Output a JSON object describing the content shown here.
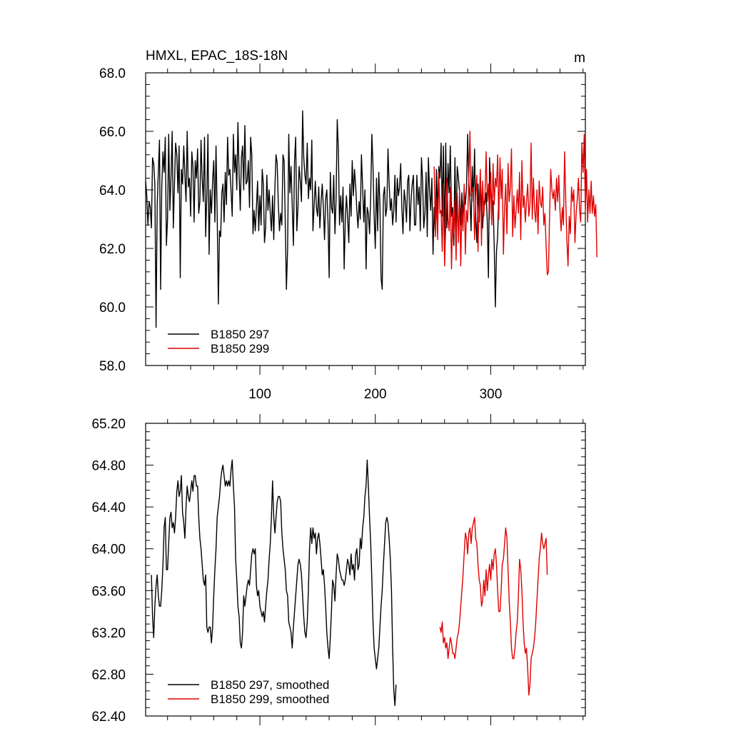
{
  "chart_data": [
    {
      "type": "line",
      "title": "HMXL, EPAC_18S-18N",
      "units": "m",
      "xlim": [
        1,
        382
      ],
      "ylim": [
        58.0,
        68.0
      ],
      "xticks": [
        100,
        200,
        300
      ],
      "xtick_labels": [
        "100",
        "200",
        "300"
      ],
      "yticks": [
        58.0,
        60.0,
        62.0,
        64.0,
        66.0,
        68.0
      ],
      "ytick_labels": [
        "58.0",
        "60.0",
        "62.0",
        "64.0",
        "66.0",
        "68.0"
      ],
      "legend_position": "bottom-left",
      "series": [
        {
          "name": "B1850 297",
          "color": "#000000",
          "x_start": 1,
          "values": [
            64.3,
            63.8,
            62.8,
            63.6,
            63.4,
            62.7,
            65.1,
            64.9,
            64.2,
            59.3,
            63.5,
            64.6,
            65.7,
            60.6,
            64.1,
            65.3,
            64.6,
            65.8,
            62.1,
            63.0,
            65.9,
            63.3,
            64.5,
            66.0,
            62.7,
            64.2,
            65.6,
            65.2,
            63.9,
            65.5,
            61.0,
            64.7,
            64.2,
            65.5,
            64.5,
            63.6,
            66.0,
            64.1,
            64.4,
            63.1,
            65.3,
            64.8,
            62.9,
            65.0,
            64.4,
            65.4,
            63.2,
            63.6,
            65.7,
            64.4,
            63.6,
            65.8,
            62.4,
            63.8,
            65.9,
            61.8,
            64.0,
            63.2,
            64.3,
            65.0,
            62.9,
            65.5,
            63.2,
            60.1,
            62.6,
            62.4,
            63.9,
            64.2,
            62.9,
            64.6,
            63.5,
            65.8,
            64.5,
            64.7,
            64.0,
            63.1,
            65.9,
            64.6,
            65.2,
            64.0,
            66.3,
            64.5,
            63.3,
            65.1,
            65.5,
            64.0,
            66.2,
            64.2,
            64.3,
            65.0,
            63.4,
            65.8,
            65.2,
            62.5,
            63.3,
            62.6,
            63.4,
            64.3,
            62.6,
            63.8,
            62.8,
            64.7,
            64.2,
            62.2,
            62.7,
            64.5,
            63.3,
            64.0,
            63.2,
            62.6,
            63.8,
            62.3,
            64.1,
            65.2,
            64.9,
            63.5,
            62.6,
            63.2,
            62.8,
            65.2,
            65.0,
            62.9,
            60.6,
            62.0,
            65.9,
            63.9,
            64.8,
            63.5,
            62.1,
            65.0,
            65.8,
            62.6,
            63.4,
            64.8,
            64.3,
            63.6,
            66.7,
            65.1,
            64.5,
            64.2,
            65.6,
            63.7,
            64.4,
            64.0,
            65.7,
            62.6,
            63.5,
            64.3,
            63.4,
            63.1,
            64.1,
            62.7,
            63.6,
            64.2,
            63.4,
            62.3,
            63.7,
            64.0,
            62.9,
            61.0,
            64.6,
            63.4,
            63.2,
            64.5,
            62.5,
            63.7,
            66.4,
            65.4,
            62.8,
            63.8,
            62.9,
            64.1,
            61.3,
            63.0,
            63.8,
            63.1,
            62.2,
            64.2,
            63.1,
            65.0,
            63.8,
            64.7,
            64.1,
            63.3,
            62.7,
            63.6,
            63.0,
            65.2,
            64.1,
            62.9,
            64.0,
            61.3,
            63.4,
            63.2,
            62.5,
            63.8,
            65.9,
            64.8,
            63.1,
            62.0,
            64.4,
            62.6,
            64.6,
            63.5,
            61.0,
            60.6,
            63.8,
            64.1,
            63.1,
            63.4,
            65.4,
            64.2,
            63.3,
            63.7,
            62.8,
            63.3,
            64.5,
            62.9,
            64.4,
            63.8,
            64.1,
            64.9,
            63.4,
            62.5,
            64.0,
            63.6,
            62.9,
            64.3,
            64.5,
            62.6,
            63.7,
            64.2,
            64.5,
            62.8,
            62.8,
            64.5,
            63.5,
            64.1,
            62.6,
            65.1,
            64.3,
            62.7,
            63.2,
            64.6,
            62.4,
            65.1,
            64.0,
            63.3,
            64.4,
            61.8,
            63.4,
            62.5,
            64.7,
            63.2,
            64.8,
            64.4,
            65.6,
            63.1,
            65.5,
            62.3,
            65.6,
            62.7,
            64.9,
            63.9,
            65.5,
            63.1,
            63.4,
            62.1,
            65.1,
            62.4,
            64.8,
            64.4,
            63.9,
            62.8,
            63.9,
            63.0,
            64.0,
            63.5,
            64.1,
            65.9,
            64.3,
            63.7,
            62.6,
            64.8,
            63.6,
            65.4,
            63.0,
            62.2,
            64.2,
            62.9,
            64.4,
            63.6,
            62.7,
            63.6,
            63.5,
            63.9,
            62.9,
            61.0,
            65.1,
            64.0,
            63.7,
            63.6,
            62.1,
            60.0,
            61.9,
            62.4,
            63.8
          ]
        },
        {
          "name": "B1850 299",
          "color": "#e00000",
          "x_start": 251,
          "values": [
            64.8,
            62.4,
            63.7,
            62.3,
            64.6,
            63.2,
            63.3,
            61.9,
            64.2,
            61.4,
            62.8,
            64.4,
            63.0,
            62.6,
            64.1,
            61.3,
            63.2,
            62.5,
            63.6,
            61.6,
            63.9,
            62.2,
            64.0,
            61.4,
            63.4,
            62.6,
            64.2,
            61.8,
            63.3,
            62.9,
            64.4,
            66.0,
            63.8,
            64.0,
            64.1,
            62.3,
            63.8,
            64.5,
            61.9,
            63.6,
            64.7,
            62.1,
            64.3,
            63.1,
            63.8,
            65.3,
            63.6,
            64.2,
            63.0,
            64.6,
            62.8,
            64.9,
            63.5,
            64.4,
            64.1,
            65.2,
            63.0,
            65.1,
            63.7,
            64.7,
            61.8,
            63.4,
            64.2,
            62.5,
            64.9,
            63.6,
            64.1,
            65.4,
            62.4,
            63.8,
            62.7,
            63.3,
            64.0,
            63.2,
            64.6,
            62.3,
            65.0,
            63.4,
            63.8,
            62.9,
            63.6,
            64.2,
            63.1,
            63.5,
            65.6,
            63.0,
            64.4,
            63.3,
            62.9,
            64.0,
            62.5,
            64.3,
            63.6,
            63.4,
            64.1,
            62.8,
            63.2,
            62.1,
            61.1,
            61.2,
            63.2,
            64.7,
            64.0,
            63.7,
            64.0,
            63.3,
            64.4,
            63.6,
            64.5,
            63.3,
            62.6,
            63.4,
            62.8,
            65.3,
            63.7,
            62.3,
            61.4,
            63.1,
            62.5,
            64.1,
            63.6,
            64.0,
            62.2,
            63.2,
            63.7,
            64.4,
            63.3,
            62.9,
            65.6,
            64.6,
            65.9,
            63.3,
            64.7,
            62.9,
            64.0,
            63.2,
            64.3,
            63.2,
            63.8,
            63.1,
            63.5,
            61.7
          ]
        }
      ]
    },
    {
      "type": "line",
      "xlim": [
        1,
        382
      ],
      "ylim": [
        62.4,
        65.2
      ],
      "yticks": [
        62.4,
        62.8,
        63.2,
        63.6,
        64.0,
        64.4,
        64.8,
        65.2
      ],
      "ytick_labels": [
        "62.40",
        "62.80",
        "63.20",
        "63.60",
        "64.00",
        "64.40",
        "64.80",
        "65.20"
      ],
      "xticks": [
        100,
        200,
        300
      ],
      "legend_position": "bottom-left",
      "series": [
        {
          "name": "B1850 297, smoothed",
          "color": "#000000",
          "x_start": 6,
          "values": [
            63.75,
            63.35,
            63.15,
            63.45,
            63.65,
            63.75,
            63.55,
            63.45,
            63.45,
            63.6,
            63.85,
            64.2,
            64.3,
            63.8,
            63.8,
            64.05,
            64.3,
            64.35,
            64.2,
            64.25,
            64.15,
            64.3,
            64.55,
            64.65,
            64.5,
            64.55,
            64.7,
            64.35,
            64.25,
            64.1,
            64.4,
            64.6,
            64.5,
            64.45,
            64.55,
            64.65,
            64.55,
            64.7,
            64.7,
            64.6,
            64.6,
            64.3,
            64.1,
            64.0,
            63.85,
            63.7,
            63.65,
            63.75,
            63.25,
            63.2,
            63.25,
            63.25,
            63.1,
            63.25,
            63.55,
            63.8,
            64.0,
            64.3,
            64.4,
            64.5,
            64.65,
            64.75,
            64.8,
            64.7,
            64.6,
            64.65,
            64.6,
            64.65,
            64.6,
            64.75,
            64.85,
            64.6,
            64.4,
            63.9,
            63.7,
            63.45,
            63.35,
            63.1,
            63.05,
            63.2,
            63.55,
            63.45,
            63.55,
            63.65,
            63.7,
            63.65,
            63.8,
            63.95,
            64.0,
            63.95,
            64.0,
            63.65,
            63.55,
            63.6,
            63.45,
            63.4,
            63.35,
            63.4,
            63.3,
            63.45,
            63.6,
            63.7,
            63.9,
            64.05,
            64.3,
            64.65,
            64.3,
            64.15,
            64.3,
            64.45,
            64.5,
            64.5,
            64.45,
            64.15,
            64.0,
            63.9,
            63.8,
            63.6,
            63.55,
            63.3,
            63.25,
            63.2,
            63.05,
            63.25,
            63.4,
            63.55,
            63.7,
            63.85,
            63.9,
            63.85,
            63.75,
            63.55,
            63.35,
            63.2,
            63.15,
            63.3,
            63.6,
            64.0,
            64.2,
            64.05,
            64.2,
            64.1,
            64.15,
            63.95,
            64.1,
            64.15,
            64.05,
            63.9,
            63.75,
            63.8,
            63.65,
            63.45,
            63.2,
            63.05,
            62.95,
            63.15,
            63.4,
            63.7,
            63.65,
            63.5,
            63.75,
            63.95,
            63.9,
            63.8,
            63.75,
            63.7,
            63.7,
            63.65,
            63.7,
            63.8,
            63.9,
            63.85,
            63.75,
            63.95,
            63.8,
            63.85,
            63.7,
            63.95,
            64.0,
            63.8,
            63.85,
            64.1,
            64.0,
            64.2,
            64.3,
            64.5,
            64.6,
            64.85,
            64.6,
            64.3,
            64.05,
            63.7,
            63.3,
            63.05,
            62.95,
            62.85,
            62.95,
            63.05,
            63.25,
            63.45,
            63.6,
            63.85,
            64.05,
            64.25,
            64.3,
            64.25,
            64.1,
            63.9,
            63.6,
            63.05,
            62.65,
            62.5,
            62.7
          ]
        },
        {
          "name": "B1850 299, smoothed",
          "color": "#e00000",
          "x_start": 256,
          "values": [
            63.25,
            63.2,
            63.3,
            63.1,
            63.15,
            63.05,
            63.1,
            62.95,
            63.05,
            63.15,
            63.1,
            63.0,
            63.0,
            62.95,
            63.05,
            63.15,
            63.2,
            63.3,
            63.45,
            63.6,
            63.75,
            63.95,
            64.15,
            64.1,
            63.95,
            64.15,
            64.2,
            64.05,
            64.2,
            64.25,
            64.3,
            64.1,
            64.05,
            63.85,
            63.7,
            63.65,
            63.45,
            63.5,
            63.7,
            63.55,
            63.8,
            63.6,
            63.75,
            63.85,
            63.7,
            63.9,
            63.8,
            63.95,
            64.0,
            63.85,
            63.6,
            63.4,
            63.4,
            63.6,
            63.85,
            63.9,
            64.05,
            64.2,
            64.1,
            63.8,
            63.5,
            63.3,
            63.05,
            62.95,
            62.95,
            63.05,
            63.2,
            63.3,
            63.55,
            63.9,
            63.8,
            63.6,
            63.3,
            63.1,
            63.0,
            63.05,
            62.85,
            62.6,
            62.7,
            62.95,
            63.0,
            63.05,
            63.15,
            63.3,
            63.5,
            63.7,
            63.9,
            64.0,
            64.15,
            64.05,
            64.0,
            64.05,
            64.1,
            63.75
          ]
        }
      ]
    }
  ]
}
